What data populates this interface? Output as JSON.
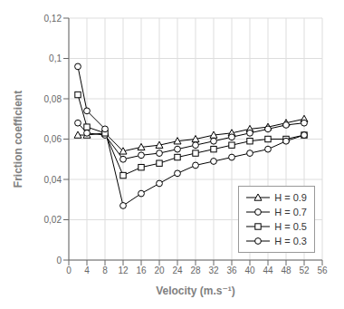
{
  "chart_data": {
    "type": "line",
    "xlabel": "Velocity (m.s⁻¹)",
    "ylabel": "Friction coefficient",
    "x": [
      2,
      4,
      8,
      12,
      16,
      20,
      24,
      28,
      32,
      36,
      40,
      44,
      48,
      52
    ],
    "series": [
      {
        "name": "H = 0.9",
        "color": "#000000",
        "marker": "triangle",
        "values": [
          0.062,
          0.062,
          0.063,
          0.054,
          0.056,
          0.057,
          0.059,
          0.06,
          0.062,
          0.063,
          0.065,
          0.066,
          0.068,
          0.07
        ]
      },
      {
        "name": "H = 0.7",
        "color": "#000000",
        "marker": "circle",
        "values": [
          0.068,
          0.063,
          0.062,
          0.05,
          0.052,
          0.053,
          0.055,
          0.057,
          0.059,
          0.061,
          0.063,
          0.065,
          0.067,
          0.068
        ]
      },
      {
        "name": "H = 0.5",
        "color": "#000000",
        "marker": "square",
        "values": [
          0.082,
          0.066,
          0.063,
          0.042,
          0.046,
          0.048,
          0.051,
          0.053,
          0.055,
          0.057,
          0.059,
          0.06,
          0.06,
          0.062
        ]
      },
      {
        "name": "H = 0.3",
        "color": "#000000",
        "marker": "circle",
        "values": [
          0.096,
          0.074,
          0.065,
          0.027,
          0.033,
          0.038,
          0.043,
          0.047,
          0.049,
          0.051,
          0.053,
          0.055,
          0.059,
          0.062
        ]
      }
    ],
    "xlim": [
      0,
      56
    ],
    "ylim": [
      0,
      0.12
    ],
    "xticks": [
      0,
      4,
      8,
      12,
      16,
      20,
      24,
      28,
      32,
      36,
      40,
      44,
      48,
      52,
      56
    ],
    "yticks": [
      0,
      {
        "value": 0.02,
        "label": "0,02"
      },
      {
        "value": 0.04,
        "label": "0,04"
      },
      {
        "value": 0.06,
        "label": "0,06"
      },
      {
        "value": 0.08,
        "label": "0,08"
      },
      {
        "value": 0.1,
        "label": "0,1"
      },
      {
        "value": 0.12,
        "label": "0,12"
      }
    ],
    "grid": true,
    "legend": "lower right"
  }
}
